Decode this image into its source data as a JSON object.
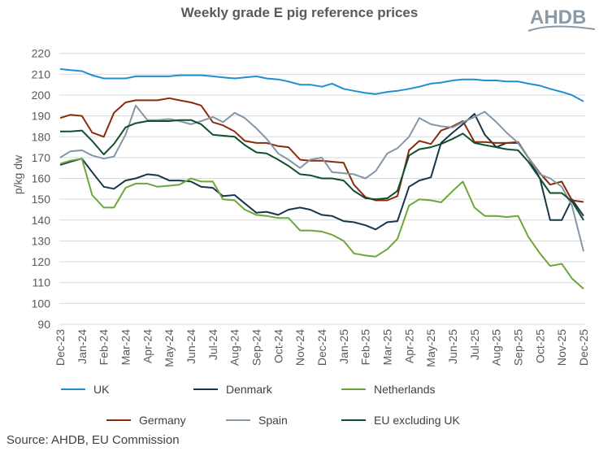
{
  "logo_text": "AHDB",
  "source": "Source: AHDB, EU Commission",
  "chart_data": {
    "type": "line",
    "title": "Weekly grade E pig reference prices",
    "xlabel": "",
    "ylabel": "p/kg dw",
    "ylim": [
      90,
      220
    ],
    "yticks": [
      90,
      100,
      110,
      120,
      130,
      140,
      150,
      160,
      170,
      180,
      190,
      200,
      210,
      220
    ],
    "xtick_labels": [
      "Dec-23",
      "Jan-24",
      "Feb-24",
      "Mar-24",
      "Apr-24",
      "May-24",
      "Jun-24",
      "Jul-24",
      "Aug-24",
      "Sep-24",
      "Oct-24",
      "Nov-24",
      "Dec-24",
      "Jan-25",
      "Feb-25",
      "Mar-25",
      "Apr-25",
      "May-25",
      "Jun-25",
      "Jul-25",
      "Aug-25",
      "Sep-25",
      "Oct-25",
      "Nov-25",
      "Dec-25"
    ],
    "grid": "horizontal",
    "legend_position": "bottom",
    "x": [
      "2023-12-01",
      "2023-12-15",
      "2024-01-01",
      "2024-01-15",
      "2024-02-01",
      "2024-02-15",
      "2024-03-01",
      "2024-03-15",
      "2024-04-01",
      "2024-04-15",
      "2024-05-01",
      "2024-05-15",
      "2024-06-01",
      "2024-06-15",
      "2024-07-01",
      "2024-07-15",
      "2024-08-01",
      "2024-08-15",
      "2024-09-01",
      "2024-09-15",
      "2024-10-01",
      "2024-10-15",
      "2024-11-01",
      "2024-11-15",
      "2024-12-01",
      "2024-12-15",
      "2025-01-01",
      "2025-01-15",
      "2025-02-01",
      "2025-02-15",
      "2025-03-01",
      "2025-03-15",
      "2025-04-01",
      "2025-04-15",
      "2025-05-01",
      "2025-05-15",
      "2025-06-01",
      "2025-06-15",
      "2025-07-01",
      "2025-07-15",
      "2025-08-01",
      "2025-08-15",
      "2025-09-01",
      "2025-09-15",
      "2025-10-01",
      "2025-10-15",
      "2025-11-01",
      "2025-11-15",
      "2025-12-01"
    ],
    "series": [
      {
        "name": "UK",
        "color": "#1f8fcf",
        "values": [
          212.5,
          212,
          211.5,
          209.5,
          208,
          208,
          208,
          209,
          209,
          209,
          209,
          209.5,
          209.5,
          209.5,
          209,
          208.5,
          208,
          208.5,
          209,
          208,
          207.5,
          206.5,
          205,
          205,
          204,
          205.5,
          203,
          202,
          201,
          200.5,
          201.5,
          202,
          203,
          204,
          205.5,
          206,
          207,
          207.5,
          207.5,
          207,
          207,
          206.5,
          206.5,
          205.5,
          204.5,
          203,
          201.5,
          200,
          197
        ]
      },
      {
        "name": "Denmark",
        "color": "#17364a",
        "values": [
          166.5,
          168,
          169.5,
          163,
          156,
          155,
          159,
          160,
          162,
          161.5,
          159,
          159,
          158.5,
          156,
          155.5,
          151.5,
          152,
          148,
          143.5,
          144,
          142.5,
          145,
          146,
          145,
          142.5,
          142,
          139.5,
          139,
          137.5,
          135.5,
          139,
          139.5,
          156,
          159,
          160.5,
          177,
          182,
          186,
          191,
          181,
          175,
          177,
          177,
          170,
          160,
          140,
          140,
          150,
          142
        ]
      },
      {
        "name": "Netherlands",
        "color": "#6aa83a",
        "values": [
          167,
          168.5,
          169.5,
          152,
          146,
          146,
          155.5,
          157.5,
          157.5,
          156,
          156.5,
          157,
          160,
          158.5,
          158.5,
          150,
          149.5,
          145,
          142.5,
          142,
          141,
          141,
          135,
          135,
          134.5,
          133,
          130,
          124,
          123,
          122.5,
          126,
          131,
          147,
          150,
          149.5,
          148.5,
          154,
          158.5,
          146,
          142,
          142,
          141.5,
          142,
          132,
          124,
          118,
          119,
          112,
          107
        ]
      },
      {
        "name": "Germany",
        "color": "#8a2b0b",
        "values": [
          189,
          190.5,
          190,
          182,
          180,
          191.5,
          196.5,
          197.5,
          197.5,
          197.5,
          198.5,
          197.5,
          196.5,
          195,
          187,
          185.5,
          182.5,
          178,
          177,
          177,
          175.5,
          175,
          169,
          168.5,
          168.5,
          168,
          167.5,
          157,
          151,
          149.5,
          149.5,
          151.5,
          173.5,
          178,
          176.5,
          183,
          185,
          187.5,
          177.5,
          177.5,
          177,
          177,
          177.5,
          170,
          162.5,
          157,
          158.5,
          149.5,
          148.7
        ]
      },
      {
        "name": "Spain",
        "color": "#8397a8",
        "values": [
          170,
          173,
          173.5,
          171,
          169.5,
          170.5,
          181,
          195,
          188,
          188,
          188.5,
          187.5,
          186,
          187.5,
          189.5,
          187,
          191.5,
          189,
          184,
          179,
          172,
          169,
          165,
          169,
          170,
          163,
          162.5,
          162,
          160,
          163.5,
          172,
          174.5,
          180,
          189,
          186,
          185,
          184.5,
          187,
          189.5,
          192,
          187,
          182,
          177,
          170,
          162,
          160,
          156,
          147,
          125
        ]
      },
      {
        "name": "EU excluding UK",
        "color": "#0f4f2b",
        "values": [
          182.5,
          182.5,
          183,
          178,
          171.5,
          176.5,
          184.5,
          186.5,
          187.5,
          187.5,
          187.5,
          188,
          188,
          186,
          181,
          180.5,
          180,
          176,
          172.5,
          172,
          169,
          166,
          162,
          161.5,
          160,
          160,
          159,
          154,
          150.5,
          150,
          150.5,
          154,
          171,
          174,
          175,
          176.5,
          179,
          181.5,
          177,
          176,
          175,
          174,
          173.5,
          168,
          160,
          153,
          153,
          149,
          140
        ]
      }
    ]
  }
}
